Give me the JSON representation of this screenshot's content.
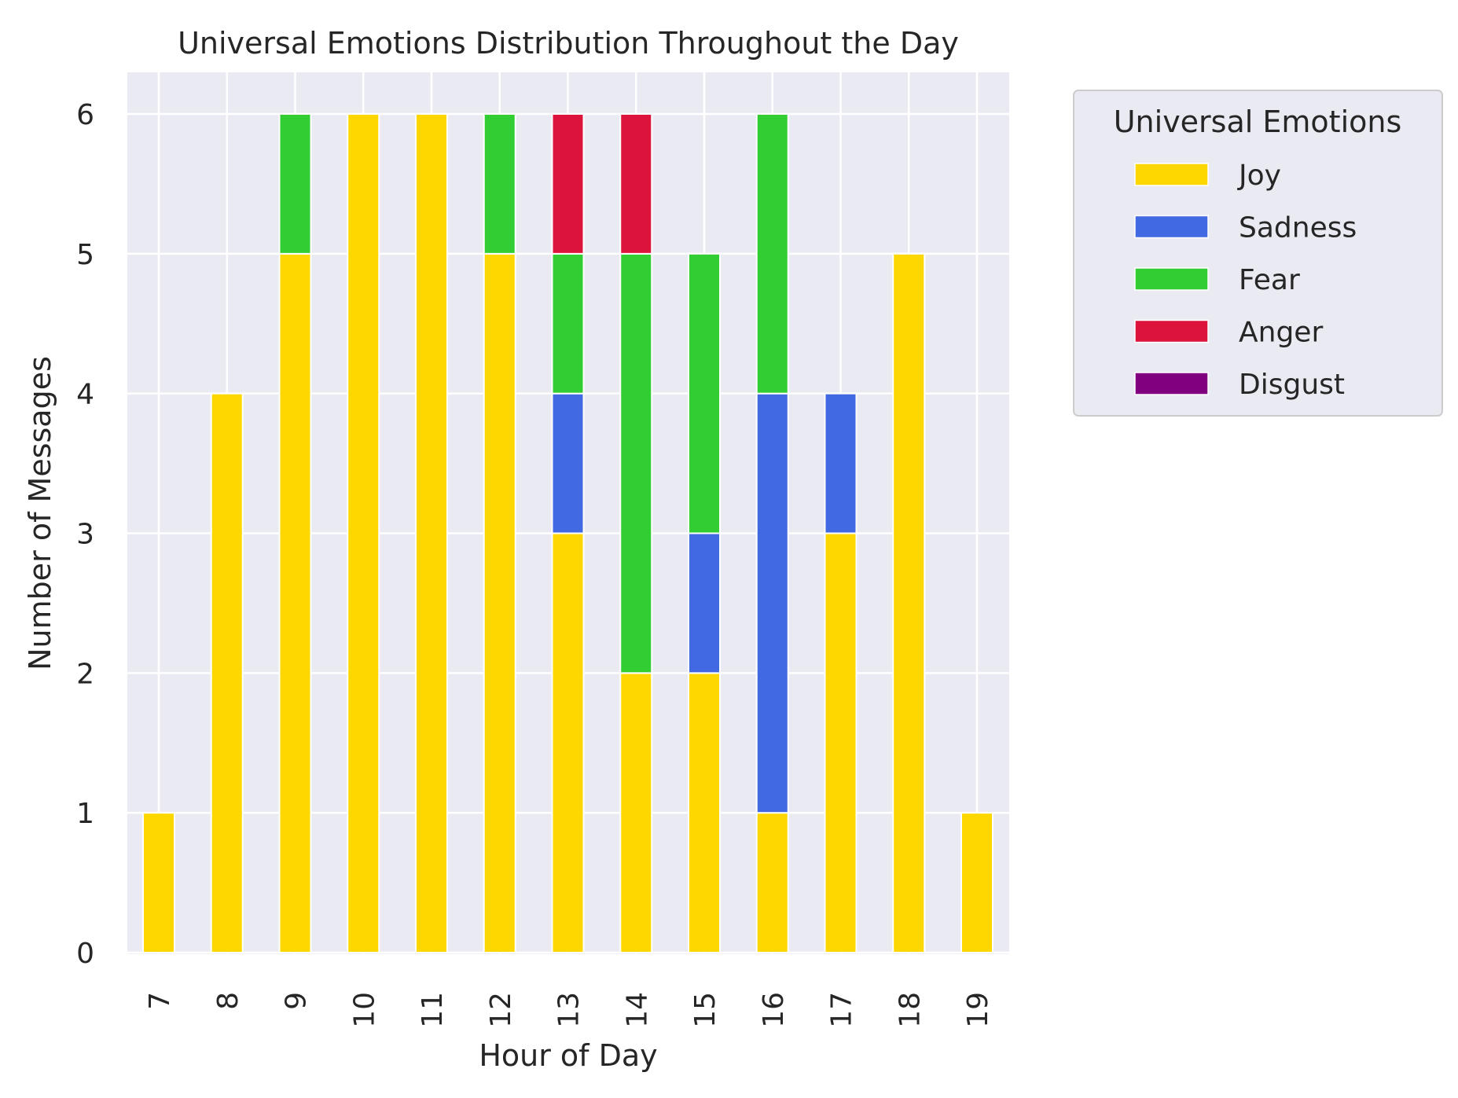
{
  "chart_data": {
    "type": "bar",
    "stacked": true,
    "title": "Universal Emotions Distribution Throughout the Day",
    "xlabel": "Hour of Day",
    "ylabel": "Number of Messages",
    "categories": [
      "7",
      "8",
      "9",
      "10",
      "11",
      "12",
      "13",
      "14",
      "15",
      "16",
      "17",
      "18",
      "19"
    ],
    "ylim": [
      0,
      6.3
    ],
    "yticks": [
      0,
      1,
      2,
      3,
      4,
      5,
      6
    ],
    "grid": true,
    "background": "#eaeaf2",
    "legend": {
      "title": "Universal Emotions",
      "placement": "outside-right-top"
    },
    "series": [
      {
        "name": "Joy",
        "color": "#ffd700",
        "values": [
          1,
          4,
          5,
          6,
          6,
          5,
          3,
          2,
          2,
          1,
          3,
          5,
          1
        ]
      },
      {
        "name": "Sadness",
        "color": "#4169e1",
        "values": [
          0,
          0,
          0,
          0,
          0,
          0,
          1,
          0,
          1,
          3,
          1,
          0,
          0
        ]
      },
      {
        "name": "Fear",
        "color": "#32cd32",
        "values": [
          0,
          0,
          1,
          0,
          0,
          1,
          1,
          3,
          2,
          2,
          0,
          0,
          0
        ]
      },
      {
        "name": "Anger",
        "color": "#dc143c",
        "values": [
          0,
          0,
          0,
          0,
          0,
          0,
          1,
          1,
          0,
          0,
          0,
          0,
          0
        ]
      },
      {
        "name": "Disgust",
        "color": "#800080",
        "values": [
          0,
          0,
          0,
          0,
          0,
          0,
          0,
          0,
          0,
          0,
          0,
          0,
          0
        ]
      }
    ]
  }
}
